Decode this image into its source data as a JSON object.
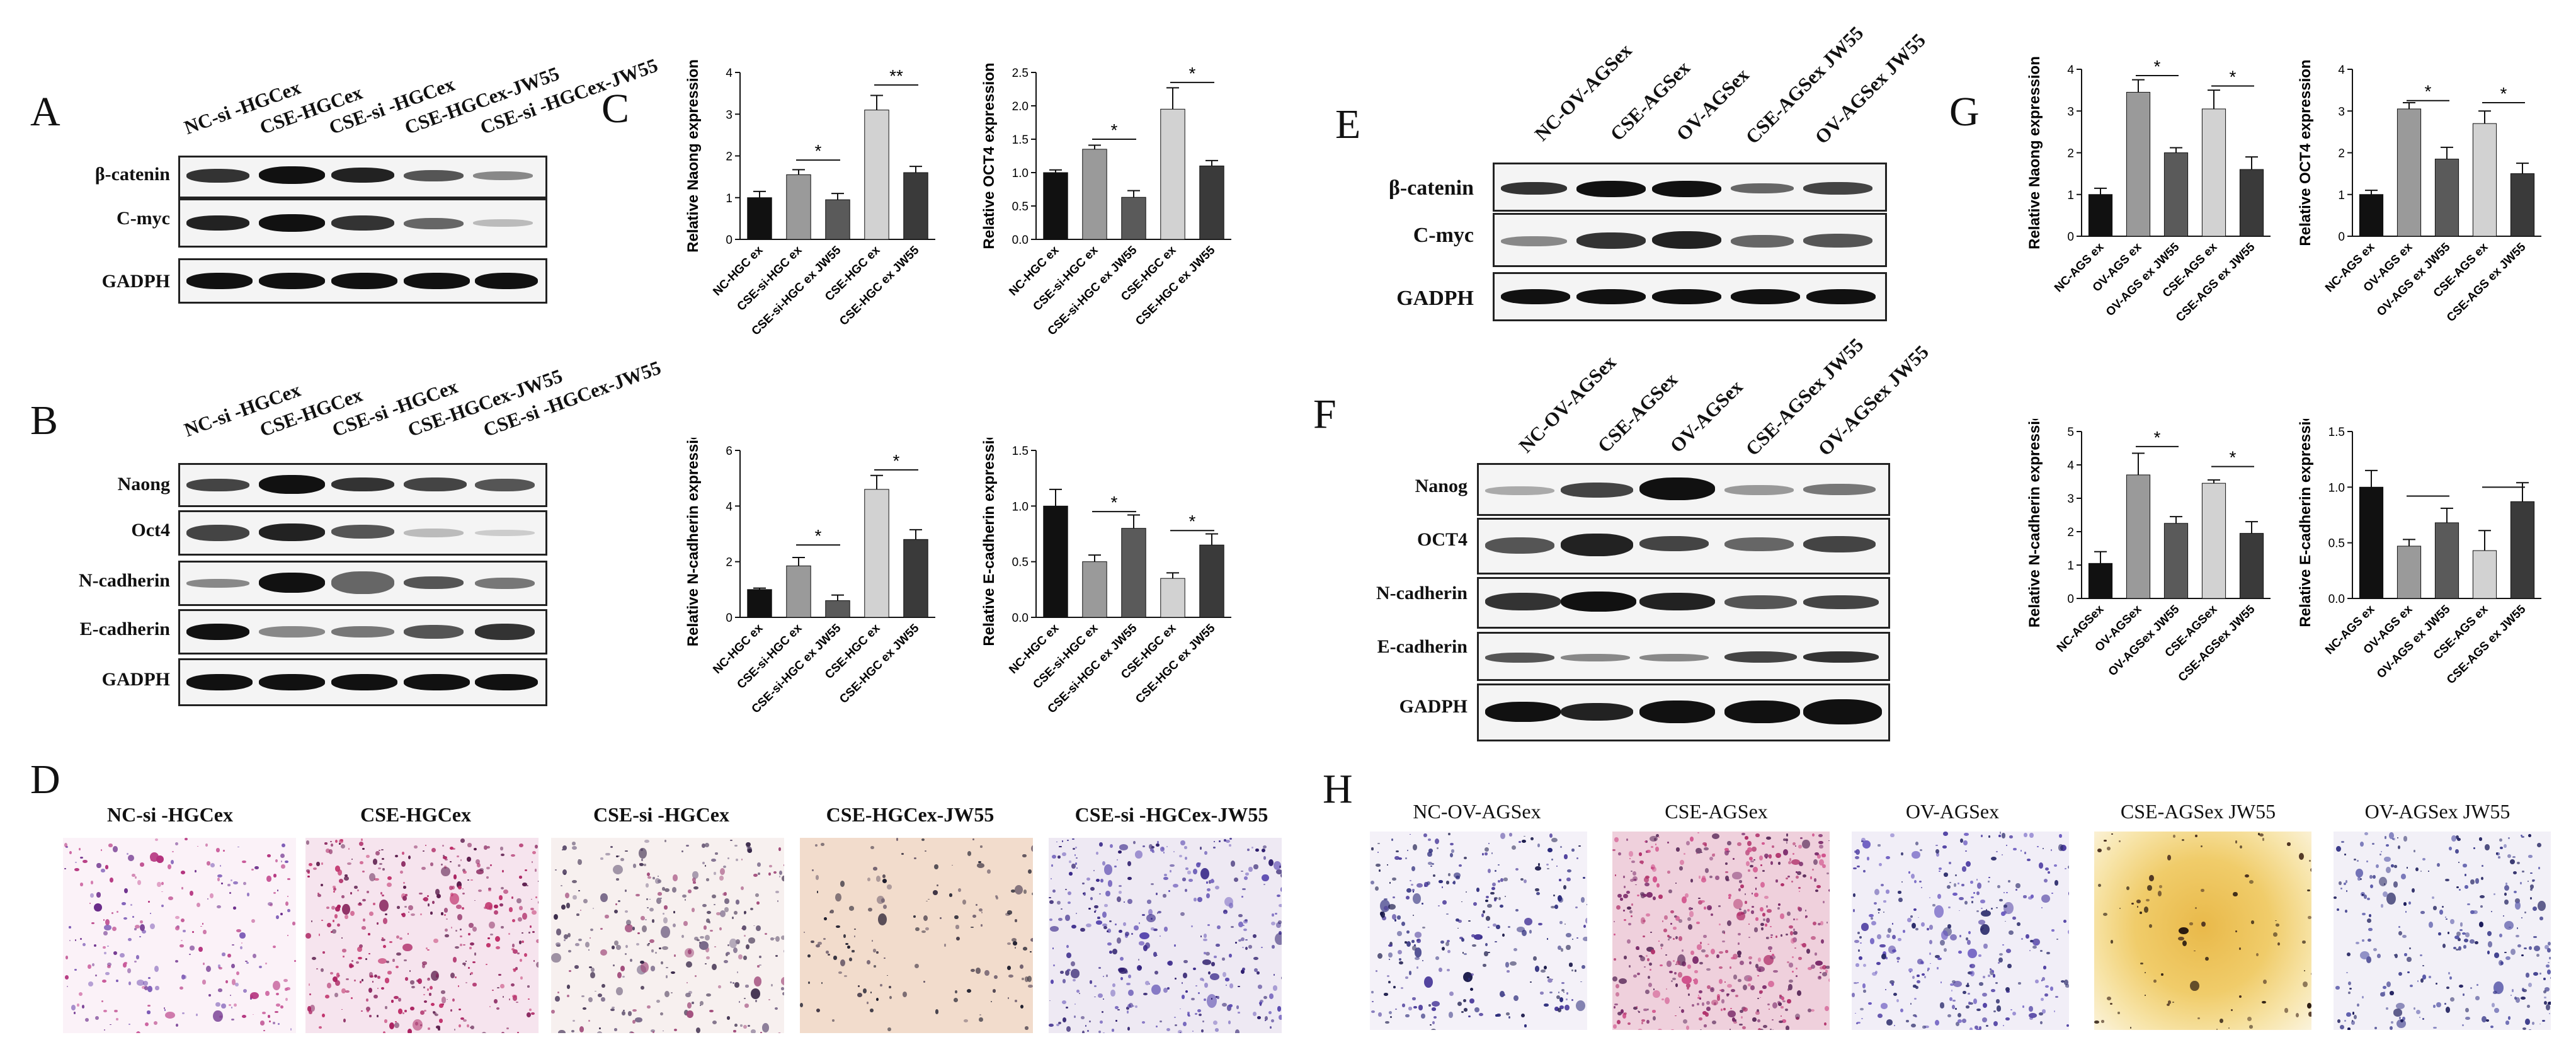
{
  "panels": {
    "A": "A",
    "B": "B",
    "C": "C",
    "D": "D",
    "E": "E",
    "F": "F",
    "G": "G",
    "H": "H"
  },
  "blotA": {
    "lanes": [
      "NC-si -HGCex",
      "CSE-HGCex",
      "CSE-si -HGCex",
      "CSE-HGCex-JW55",
      "CSE-si -HGCex-JW55"
    ],
    "rows": [
      "β-catenin",
      "C-myc",
      "GADPH"
    ]
  },
  "blotB": {
    "lanes": [
      "NC-si -HGCex",
      "CSE-HGCex",
      "CSE-si -HGCex",
      "CSE-HGCex-JW55",
      "CSE-si -HGCex-JW55"
    ],
    "rows": [
      "Naong",
      "Oct4",
      "N-cadherin",
      "E-cadherin",
      "GADPH"
    ]
  },
  "blotE": {
    "lanes": [
      "NC-OV-AGSex",
      "CSE-AGSex",
      "OV-AGSex",
      "CSE-AGSex JW55",
      "OV-AGSex JW55"
    ],
    "rows": [
      "β-catenin",
      "C-myc",
      "GADPH"
    ]
  },
  "blotF": {
    "lanes": [
      "NC-OV-AGSex",
      "CSE-AGSex",
      "OV-AGSex",
      "CSE-AGSex JW55",
      "OV-AGSex JW55"
    ],
    "rows": [
      "Nanog",
      "OCT4",
      "N-cadherin",
      "E-cadherin",
      "GADPH"
    ]
  },
  "wellsD": [
    "NC-si -HGCex",
    "CSE-HGCex",
    "CSE-si -HGCex",
    "CSE-HGCex-JW55",
    "CSE-si -HGCex-JW55"
  ],
  "wellsH": [
    "NC-OV-AGSex",
    "CSE-AGSex",
    "OV-AGSex",
    "CSE-AGSex JW55",
    "OV-AGSex JW55"
  ],
  "colors": {
    "bar1": "#111111",
    "bar2": "#9a9a9a",
    "bar3": "#5a5a5a",
    "bar4": "#d2d2d2",
    "bar5": "#3a3a3a"
  },
  "chart_data": [
    {
      "id": "C1",
      "type": "bar",
      "ylabel": "Relative Naong expression",
      "ylim": [
        0,
        4
      ],
      "yticks": [
        "0",
        "1",
        "2",
        "3",
        "4"
      ],
      "categories": [
        "NC-HGC ex",
        "CSE-si-HGC ex",
        "CSE-si-HGC ex JW55",
        "CSE-HGC ex",
        "CSE-HGC ex JW55"
      ],
      "values": [
        1.0,
        1.55,
        0.95,
        3.1,
        1.6
      ],
      "errors": [
        0.15,
        0.12,
        0.15,
        0.35,
        0.15
      ],
      "sig": [
        {
          "from": 1,
          "to": 2,
          "y": 1.9,
          "label": "*"
        },
        {
          "from": 3,
          "to": 4,
          "y": 3.7,
          "label": "**"
        }
      ]
    },
    {
      "id": "C2",
      "type": "bar",
      "ylabel": "Relative OCT4 expression",
      "ylim": [
        0,
        2.5
      ],
      "yticks": [
        "0.0",
        "0.5",
        "1.0",
        "1.5",
        "2.0",
        "2.5"
      ],
      "categories": [
        "NC-HGC ex",
        "CSE-si-HGC ex",
        "CSE-si-HGC ex JW55",
        "CSE-HGC ex",
        "CSE-HGC ex JW55"
      ],
      "values": [
        1.0,
        1.35,
        0.63,
        1.95,
        1.1
      ],
      "errors": [
        0.04,
        0.06,
        0.1,
        0.32,
        0.08
      ],
      "sig": [
        {
          "from": 1,
          "to": 2,
          "y": 1.5,
          "label": "*"
        },
        {
          "from": 3,
          "to": 4,
          "y": 2.35,
          "label": "*"
        }
      ]
    },
    {
      "id": "C3",
      "type": "bar",
      "ylabel": "Relative N-cadherin expression",
      "ylim": [
        0,
        6
      ],
      "yticks": [
        "0",
        "2",
        "4",
        "6"
      ],
      "categories": [
        "NC-HGC ex",
        "CSE-si-HGC ex",
        "CSE-si-HGC ex JW55",
        "CSE-HGC ex",
        "CSE-HGC ex JW55"
      ],
      "values": [
        1.0,
        1.85,
        0.6,
        4.6,
        2.8
      ],
      "errors": [
        0.05,
        0.3,
        0.2,
        0.5,
        0.35
      ],
      "sig": [
        {
          "from": 1,
          "to": 2,
          "y": 2.6,
          "label": "*"
        },
        {
          "from": 3,
          "to": 4,
          "y": 5.3,
          "label": "*"
        }
      ]
    },
    {
      "id": "C4",
      "type": "bar",
      "ylabel": "Relative E-cadherin expression",
      "ylim": [
        0,
        1.5
      ],
      "yticks": [
        "0.0",
        "0.5",
        "1.0",
        "1.5"
      ],
      "categories": [
        "NC-HGC ex",
        "CSE-si-HGC ex",
        "CSE-si-HGC ex JW55",
        "CSE-HGC ex",
        "CSE-HGC ex JW55"
      ],
      "values": [
        1.0,
        0.5,
        0.8,
        0.35,
        0.65
      ],
      "errors": [
        0.15,
        0.06,
        0.12,
        0.05,
        0.1
      ],
      "sig": [
        {
          "from": 1,
          "to": 2,
          "y": 0.95,
          "label": "*"
        },
        {
          "from": 3,
          "to": 4,
          "y": 0.78,
          "label": "*"
        }
      ]
    },
    {
      "id": "G1",
      "type": "bar",
      "ylabel": "Relative Naong expression",
      "ylim": [
        0,
        4
      ],
      "yticks": [
        "0",
        "1",
        "2",
        "3",
        "4"
      ],
      "categories": [
        "NC-AGS ex",
        "OV-AGS ex",
        "OV-AGS ex JW55",
        "CSE-AGS ex",
        "CSE-AGS ex JW55"
      ],
      "values": [
        1.0,
        3.45,
        2.0,
        3.05,
        1.6
      ],
      "errors": [
        0.15,
        0.3,
        0.12,
        0.45,
        0.3
      ],
      "sig": [
        {
          "from": 1,
          "to": 2,
          "y": 3.85,
          "label": "*"
        },
        {
          "from": 3,
          "to": 4,
          "y": 3.6,
          "label": "*"
        }
      ]
    },
    {
      "id": "G2",
      "type": "bar",
      "ylabel": "Relative OCT4 expression",
      "ylim": [
        0,
        4
      ],
      "yticks": [
        "0",
        "1",
        "2",
        "3",
        "4"
      ],
      "categories": [
        "NC-AGS ex",
        "OV-AGS ex",
        "OV-AGS ex JW55",
        "CSE-AGS ex",
        "CSE-AGS ex JW55"
      ],
      "values": [
        1.0,
        3.05,
        1.85,
        2.7,
        1.5
      ],
      "errors": [
        0.1,
        0.15,
        0.28,
        0.3,
        0.25
      ],
      "sig": [
        {
          "from": 1,
          "to": 2,
          "y": 3.25,
          "label": "*"
        },
        {
          "from": 3,
          "to": 4,
          "y": 3.2,
          "label": "*"
        }
      ]
    },
    {
      "id": "G3",
      "type": "bar",
      "ylabel": "Relative N-cadherin expression",
      "ylim": [
        0,
        5
      ],
      "yticks": [
        "0",
        "1",
        "2",
        "3",
        "4",
        "5"
      ],
      "categories": [
        "NC-AGSex",
        "OV-AGSex",
        "OV-AGSex JW55",
        "CSE-AGSex",
        "CSE-AGSex JW55"
      ],
      "values": [
        1.05,
        3.7,
        2.25,
        3.45,
        1.95
      ],
      "errors": [
        0.35,
        0.65,
        0.2,
        0.1,
        0.35
      ],
      "sig": [
        {
          "from": 1,
          "to": 2,
          "y": 4.55,
          "label": "*"
        },
        {
          "from": 3,
          "to": 4,
          "y": 3.95,
          "label": "*"
        }
      ]
    },
    {
      "id": "G4",
      "type": "bar",
      "ylabel": "Relative E-cadherin expression",
      "ylim": [
        0,
        1.5
      ],
      "yticks": [
        "0.0",
        "0.5",
        "1.0",
        "1.5"
      ],
      "categories": [
        "NC-AGS ex",
        "OV-AGS ex",
        "OV-AGS ex JW55",
        "CSE-AGS ex",
        "CSE-AGS ex JW55"
      ],
      "values": [
        1.0,
        0.47,
        0.68,
        0.43,
        0.87
      ],
      "errors": [
        0.15,
        0.06,
        0.13,
        0.18,
        0.17
      ],
      "sig": [
        {
          "from": 1,
          "to": 2,
          "y": 0.92,
          "label": ""
        },
        {
          "from": 3,
          "to": 4,
          "y": 1.0,
          "label": ""
        }
      ]
    }
  ]
}
